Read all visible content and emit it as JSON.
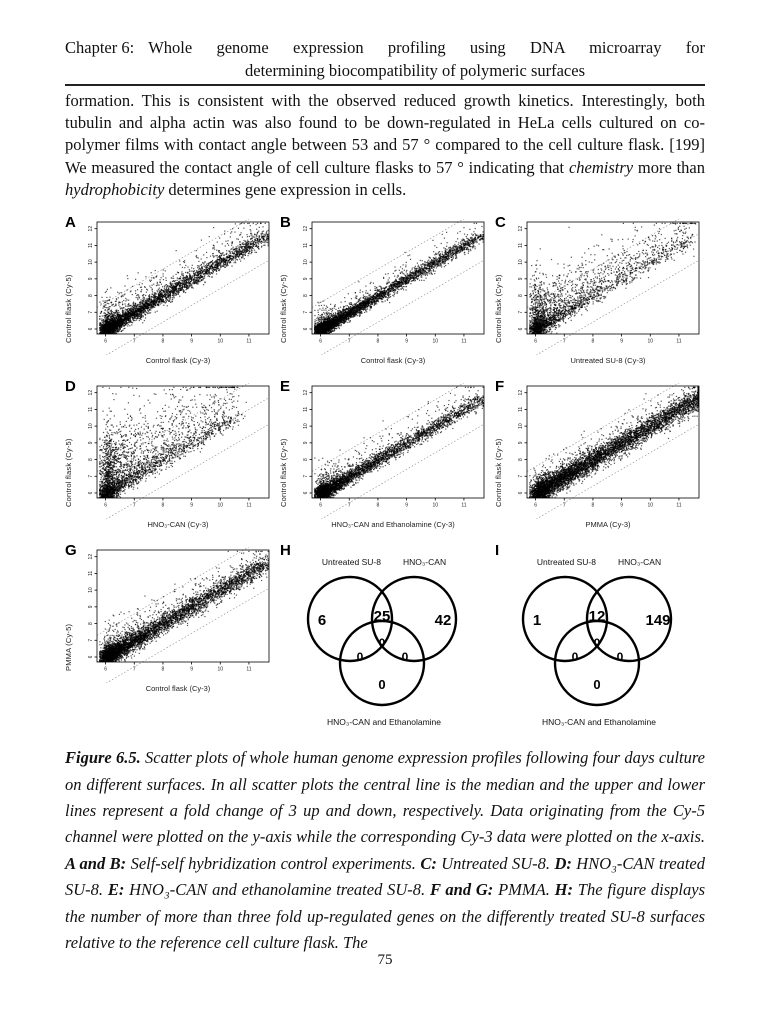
{
  "header": {
    "chapter_label": "Chapter 6:",
    "title_line1": "Whole genome expression profiling using DNA microarray for",
    "title_line2": "determining biocompatibility of polymeric surfaces"
  },
  "body": {
    "segments": [
      {
        "t": "formation. This is consistent with the observed reduced growth kinetics. Interestingly, both tubulin and alpha actin was also found to be down-regulated in HeLa cells cultured on co-polymer films with contact angle between 53 and 57 ° compared to the cell culture flask. [199] We measured the contact angle of cell culture flasks to 57 ° indicating that ",
        "s": "n"
      },
      {
        "t": "chemistry",
        "s": "i"
      },
      {
        "t": " more than ",
        "s": "n"
      },
      {
        "t": "hydrophobicity",
        "s": "i"
      },
      {
        "t": " determines gene expression in cells.",
        "s": "n"
      }
    ]
  },
  "figure": {
    "caption_segments": [
      {
        "t": "Figure 6.5. ",
        "s": "bi"
      },
      {
        "t": "Scatter plots of whole human genome expression profiles following four days culture on different surfaces. In all scatter plots the central line is the median and the upper and lower lines represent a fold change of 3 up and down, respectively. Data originating from the Cy-5 channel were plotted on the y-axis while the corresponding Cy-3 data were plotted on the x-axis. ",
        "s": "i"
      },
      {
        "t": "A and B: ",
        "s": "bi"
      },
      {
        "t": "Self-self hybridization control experiments. ",
        "s": "i"
      },
      {
        "t": "C: ",
        "s": "bi"
      },
      {
        "t": "Untreated SU-8. ",
        "s": "i"
      },
      {
        "t": "D: ",
        "s": "bi"
      },
      {
        "t": "HNO₃-CAN treated SU-8. ",
        "s": "i"
      },
      {
        "t": "E: ",
        "s": "bi"
      },
      {
        "t": "HNO₃-CAN and ethanolamine treated SU-8. ",
        "s": "i"
      },
      {
        "t": "F and G: ",
        "s": "bi"
      },
      {
        "t": "PMMA. ",
        "s": "i"
      },
      {
        "t": "H: ",
        "s": "bi"
      },
      {
        "t": "The figure displays the number of more than three fold up-regulated genes on the differently treated SU-8 surfaces relative to the reference cell culture flask. The",
        "s": "i"
      }
    ]
  },
  "page": {
    "page_number": "75"
  },
  "chart_data": {
    "description": "Seven MA-style log2 intensity scatter plots (dense black point clouds along the identity diagonal with dotted median line and dashed 3-fold up/down lines) and two 3-set Venn diagrams of >3-fold up-regulated gene counts.",
    "axis": {
      "xticks": [
        6,
        7,
        8,
        9,
        10,
        11
      ],
      "yticks": [
        6,
        7,
        8,
        9,
        10,
        11,
        12
      ],
      "xlim": [
        5.7,
        11.7
      ],
      "ylim": [
        5.7,
        12.4
      ],
      "fold_change_offset": 1.585
    },
    "scatter_panels": [
      {
        "letter": "A",
        "xlabel": "Control flask (Cy-3)",
        "ylabel": "Control flask (Cy-5)",
        "pattern": "self-self control, tight diagonal with slight upward scatter at low intensities",
        "n": 4500,
        "exp": 2.4,
        "sym": 0.2,
        "fUp": 0.18,
        "up": 0.8,
        "span": 5.6,
        "seed": 11
      },
      {
        "letter": "B",
        "xlabel": "Control flask (Cy-3)",
        "ylabel": "Control flask (Cy-5)",
        "pattern": "self-self control, very tight diagonal",
        "n": 4500,
        "exp": 2.6,
        "sym": 0.16,
        "fUp": 0.1,
        "up": 0.6,
        "span": 5.6,
        "seed": 22
      },
      {
        "letter": "C",
        "xlabel": "Untreated SU-8 (Cy-3)",
        "ylabel": "Control flask (Cy-5)",
        "pattern": "wide fan of up-regulated genes above median",
        "n": 2600,
        "exp": 3.0,
        "sym": 0.25,
        "fUp": 0.5,
        "up": 1.3,
        "span": 5.4,
        "seed": 33
      },
      {
        "letter": "D",
        "xlabel": "HNO₃-CAN (Cy-3)",
        "ylabel": "Control flask (Cy-5)",
        "pattern": "strong vertical up-regulated cloud at low x",
        "n": 3000,
        "exp": 3.0,
        "sym": 0.25,
        "fUp": 0.55,
        "up": 1.8,
        "span": 4.6,
        "seed": 44
      },
      {
        "letter": "E",
        "xlabel": "HNO₃-CAN and Ethanolamine (Cy-3)",
        "ylabel": "Control flask (Cy-5)",
        "pattern": "tight diagonal band",
        "n": 4000,
        "exp": 2.6,
        "sym": 0.18,
        "fUp": 0.12,
        "up": 0.7,
        "span": 5.6,
        "seed": 55
      },
      {
        "letter": "F",
        "xlabel": "PMMA (Cy-3)",
        "ylabel": "Control flask (Cy-5)",
        "pattern": "broad dense diagonal band extending to high intensities",
        "n": 6000,
        "exp": 1.6,
        "sym": 0.3,
        "fUp": 0.12,
        "up": 0.6,
        "span": 6.0,
        "seed": 66
      },
      {
        "letter": "G",
        "xlabel": "Control flask (Cy-3)",
        "ylabel": "PMMA (Cy-5)",
        "pattern": "dense diagonal band, moderate spread",
        "n": 5000,
        "exp": 2.2,
        "sym": 0.25,
        "fUp": 0.15,
        "up": 0.7,
        "span": 5.6,
        "seed": 77
      }
    ],
    "venn_panels": [
      {
        "letter": "H",
        "left_label": "Untreated SU-8",
        "right_label": "HNO₃-CAN",
        "bottom_label": "HNO₃-CAN and Ethanolamine",
        "counts": {
          "left_only": "6",
          "left_right": "25",
          "right_only": "42",
          "center": "0",
          "left_bottom": "0",
          "right_bottom": "0",
          "bottom_only": "0"
        }
      },
      {
        "letter": "I",
        "left_label": "Untreated SU-8",
        "right_label": "HNO₃-CAN",
        "bottom_label": "HNO₃-CAN and Ethanolamine",
        "counts": {
          "left_only": "1",
          "left_right": "12",
          "right_only": "149",
          "center": "0",
          "left_bottom": "0",
          "right_bottom": "0",
          "bottom_only": "0"
        }
      }
    ]
  }
}
